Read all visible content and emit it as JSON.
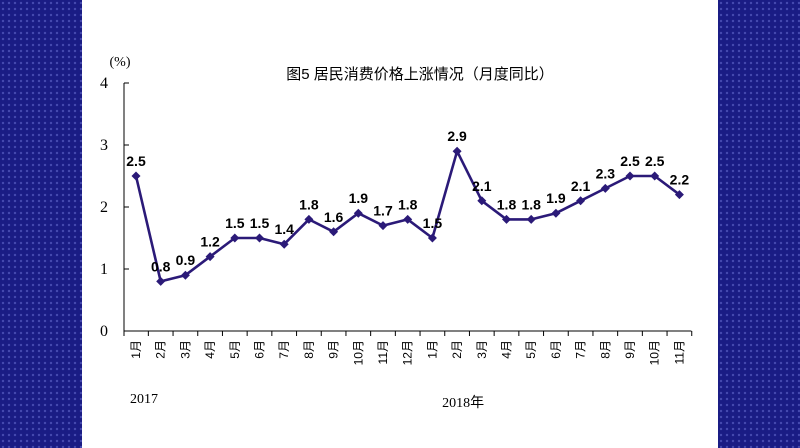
{
  "chart_data": {
    "type": "line",
    "title": "图5   居民消费价格上涨情况（月度同比）",
    "ylabel": "(%)",
    "xlabel": "",
    "ylim": [
      0,
      4
    ],
    "yticks": [
      "0",
      "1",
      "2",
      "3",
      "4"
    ],
    "categories": [
      "1月",
      "2月",
      "3月",
      "4月",
      "5月",
      "6月",
      "7月",
      "8月",
      "9月",
      "10月",
      "11月",
      "12月",
      "1月",
      "2月",
      "3月",
      "4月",
      "5月",
      "6月",
      "7月",
      "8月",
      "9月",
      "10月",
      "11月"
    ],
    "year_labels": [
      "2017",
      "2018年"
    ],
    "series": [
      {
        "values": [
          2.5,
          0.8,
          0.9,
          1.2,
          1.5,
          1.5,
          1.4,
          1.8,
          1.6,
          1.9,
          1.7,
          1.8,
          1.5,
          2.9,
          2.1,
          1.8,
          1.8,
          1.9,
          2.1,
          2.3,
          2.5,
          2.5,
          2.2
        ],
        "labels": [
          "2.5",
          "0.8",
          "0.9",
          "1.2",
          "1.5",
          "1.5",
          "1.4",
          "1.8",
          "1.6",
          "1.9",
          "1.7",
          "1.8",
          "1.5",
          "2.9",
          "2.1",
          "1.8",
          "1.8",
          "1.9",
          "2.1",
          "2.3",
          "2.5",
          "2.5",
          "2.2"
        ],
        "color": "#2b1a78"
      }
    ],
    "grid": false,
    "legend": "none"
  }
}
